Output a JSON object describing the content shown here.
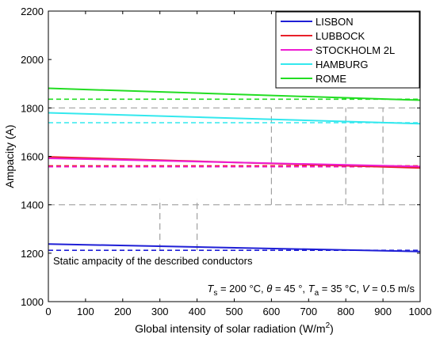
{
  "chart_data": {
    "type": "line",
    "xlabel": "Global intensity of solar radiation (W/m",
    "xlabel_sup": "2",
    "xlabel_end": ")",
    "ylabel": "Ampacity (A)",
    "xlim": [
      0,
      1000
    ],
    "ylim": [
      1000,
      2200
    ],
    "xticks": [
      0,
      100,
      200,
      300,
      400,
      500,
      600,
      700,
      800,
      900,
      1000
    ],
    "yticks": [
      1000,
      1200,
      1400,
      1600,
      1800,
      2000,
      2200
    ],
    "grid": false,
    "legend_position": "top-right",
    "series": [
      {
        "name": "LISBON",
        "color": "#1f1fd6",
        "x": [
          0,
          1000
        ],
        "y": [
          1238,
          1207
        ]
      },
      {
        "name": "LUBBOCK",
        "color": "#e8202a",
        "x": [
          0,
          1000
        ],
        "y": [
          1598,
          1552
        ]
      },
      {
        "name": "STOCKHOLM 2L",
        "color": "#ee1bd2",
        "x": [
          0,
          1000
        ],
        "y": [
          1592,
          1558
        ]
      },
      {
        "name": "HAMBURG",
        "color": "#33e8ee",
        "x": [
          0,
          1000
        ],
        "y": [
          1780,
          1735
        ]
      },
      {
        "name": "ROME",
        "color": "#22dd22",
        "x": [
          0,
          1000
        ],
        "y": [
          1881,
          1832
        ]
      }
    ],
    "static_lines": [
      {
        "color": "#1f1fd6",
        "y": 1212
      },
      {
        "color": "#e8202a",
        "y": 1561
      },
      {
        "color": "#ee1bd2",
        "y": 1557
      },
      {
        "color": "#33e8ee",
        "y": 1739
      },
      {
        "color": "#22dd22",
        "y": 1836
      }
    ],
    "reference_lines": {
      "color": "#a0a0a0",
      "horizontal": [
        1400,
        1800
      ],
      "vertical": [
        {
          "x": 300,
          "y_range": [
            1212,
            1425
          ]
        },
        {
          "x": 400,
          "y_range": [
            1212,
            1425
          ]
        },
        {
          "x": 600,
          "y_range": [
            1400,
            1800
          ]
        },
        {
          "x": 800,
          "y_range": [
            1400,
            1800
          ]
        },
        {
          "x": 900,
          "y_range": [
            1400,
            1800
          ]
        }
      ]
    },
    "annotations": {
      "static_label": "Static ampacity of the described conductors",
      "conditions": {
        "ts_symbol": "T",
        "ts_sub": "s",
        "ts_value": " = 200 °C, ",
        "theta_symbol": "θ",
        "theta_value": " = 45 °, ",
        "ta_symbol": "T",
        "ta_sub": "a",
        "ta_value": " = 35 °C, ",
        "v_symbol": "V",
        "v_value": " = 0.5 m/s"
      }
    }
  }
}
